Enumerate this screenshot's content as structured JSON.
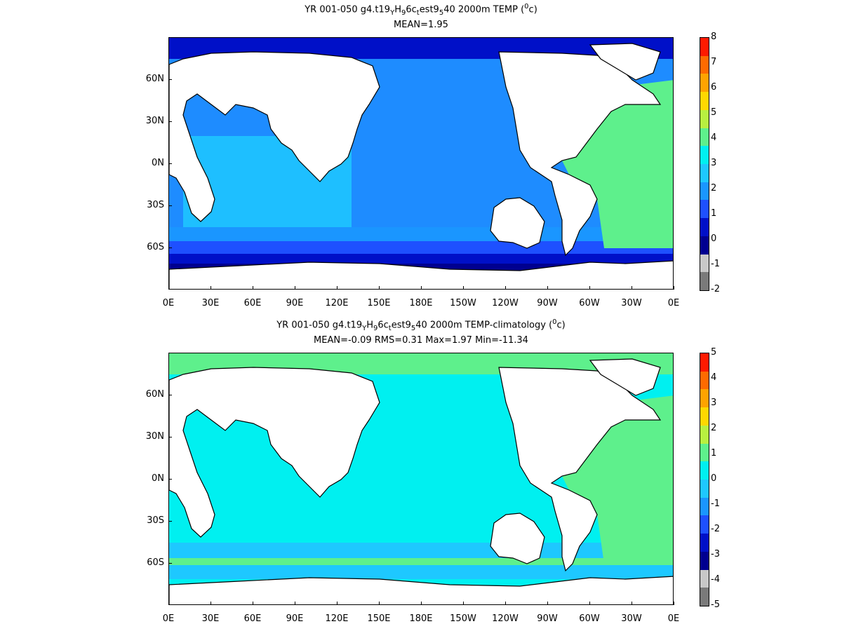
{
  "panels": [
    {
      "title_prefix": "YR 001-050 g4.t19",
      "title_parts": [
        "YR 001-050 g4.t19",
        "Y",
        "H",
        "9",
        "6c",
        "t",
        "est9",
        "5",
        "40 2000m TEMP (",
        "0",
        "c)"
      ],
      "stats": "MEAN=1.95",
      "colorbar_labels": [
        "8",
        "7",
        "6",
        "5",
        "4",
        "3",
        "2",
        "1",
        "0",
        "-1",
        "-2"
      ],
      "colorbar_colors": [
        "#ff1a00",
        "#ff6a00",
        "#ffa300",
        "#ffd800",
        "#b8f040",
        "#5ef08c",
        "#00f0f0",
        "#1ec8ff",
        "#1a96ff",
        "#1e50ff",
        "#0010c8",
        "#000090",
        "#c8c8c8",
        "#7a7a7a"
      ],
      "ocean_color": "#1e8cff",
      "atlantic_color": "#5ef08c"
    },
    {
      "title_parts": [
        "YR 001-050 g4.t19",
        "Y",
        "H",
        "9",
        "6c",
        "t",
        "est9",
        "5",
        "40 2000m TEMP-climatology (",
        "0",
        "c)"
      ],
      "stats": "MEAN=-0.09   RMS=0.31   Max=1.97   Min=-11.34",
      "colorbar_labels": [
        "5",
        "4",
        "3",
        "2",
        "1",
        "0",
        "-1",
        "-2",
        "-3",
        "-4",
        "-5"
      ],
      "colorbar_colors": [
        "#ff1a00",
        "#ff6a00",
        "#ffa300",
        "#ffd800",
        "#b8f040",
        "#5ef08c",
        "#00f0f0",
        "#1ec8ff",
        "#1a96ff",
        "#1e50ff",
        "#0010c8",
        "#000090",
        "#c8c8c8",
        "#7a7a7a"
      ],
      "ocean_color": "#00f0f0",
      "atlantic_color": "#5ef08c"
    }
  ],
  "lat_labels": [
    "60N",
    "30N",
    "0N",
    "30S",
    "60S"
  ],
  "lon_labels": [
    "0E",
    "30E",
    "60E",
    "90E",
    "120E",
    "150E",
    "180E",
    "150W",
    "120W",
    "90W",
    "60W",
    "30W",
    "0E"
  ]
}
